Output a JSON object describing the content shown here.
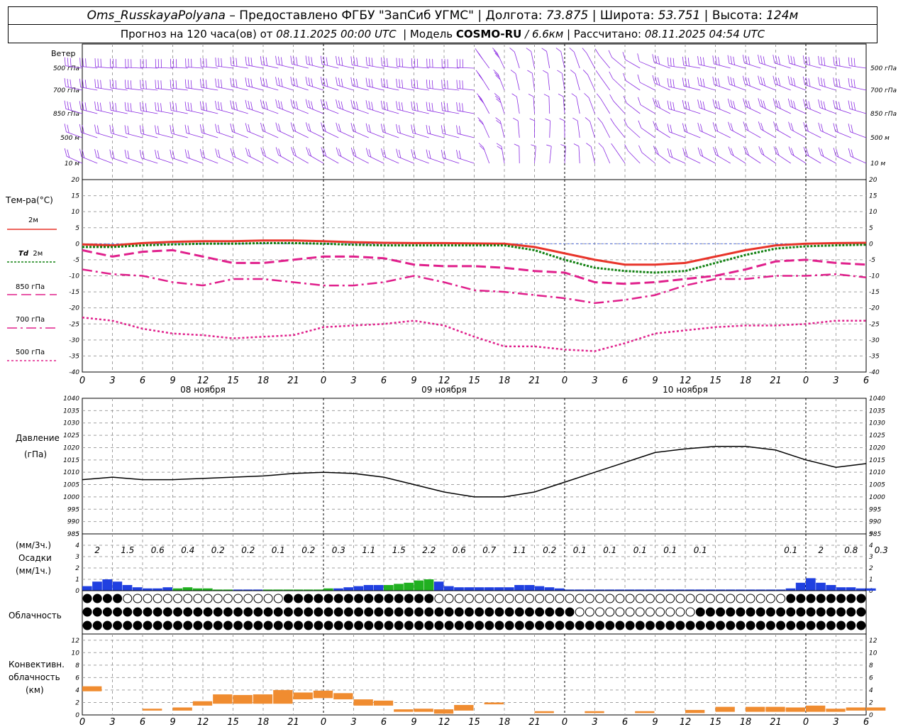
{
  "header": {
    "station": "Oms_RusskayaPolyana",
    "provided_by": "– Предоставлено ФГБУ \"ЗапСиб УГМС\"",
    "lon_label": "Долгота:",
    "lon_value": "73.875",
    "lat_label": "Широта:",
    "lat_value": "53.751",
    "alt_label": "Высота:",
    "alt_value": "124м",
    "forecast_label": "Прогноз на 120 часа(ов) от",
    "forecast_start": "08.11.2025 00:00 UTC",
    "model_label": "Модель",
    "model_name": "COSMO-RU",
    "model_res": "/ 6.6км",
    "calc_label": "Рассчитано:",
    "calc_time": "08.11.2025 04:54 UTC"
  },
  "labels": {
    "wind": "Ветер",
    "wind_levels": [
      "500 гПа",
      "700 гПа",
      "850 гПа",
      "500 м",
      "10  м"
    ],
    "temp": "Тем-ра(°С)",
    "t2m": "2м",
    "td": "Td",
    "td2": "2м",
    "t850": "850 гПа",
    "t700": "700 гПа",
    "t500": "500 гПа",
    "pressure": "Давление",
    "pressure_unit": "(гПа)",
    "precip_unit3": "(мм/3ч.)",
    "precip": "Осадки",
    "precip_unit1": "(мм/1ч.)",
    "clouds": "Облачность",
    "conv1": "Конвективн.",
    "conv2": "облачность",
    "conv3": "(км)"
  },
  "colors": {
    "t2m": "#e8342a",
    "td": "#108010",
    "t850": "#e0208c",
    "t700": "#e0208c",
    "t500": "#e0208c",
    "pressure": "#000000",
    "precip_rain": "#2040e0",
    "precip_snow": "#20b020",
    "conv": "#f08c30",
    "wind": "#8a2be2",
    "grid": "#a0a0a0"
  },
  "chart_data": [
    {
      "type": "line",
      "name": "temperature",
      "x_ticks": [
        "0",
        "3",
        "6",
        "9",
        "12",
        "15",
        "18",
        "21",
        "0",
        "3",
        "6",
        "9",
        "12",
        "15",
        "18",
        "21",
        "0",
        "3",
        "6",
        "9",
        "12",
        "15",
        "18",
        "21",
        "0",
        "3",
        "6"
      ],
      "day_labels": [
        "08 ноября",
        "09 ноября",
        "10 ноября"
      ],
      "ylim": [
        -40,
        20
      ],
      "y_ticks": [
        "20",
        "15",
        "10",
        "5",
        "0",
        "-5",
        "-10",
        "-15",
        "-20",
        "-25",
        "-30",
        "-35",
        "-40"
      ],
      "x_hours": [
        0,
        3,
        6,
        9,
        12,
        15,
        18,
        21,
        24,
        27,
        30,
        33,
        36,
        39,
        42,
        45,
        48,
        51,
        54,
        57,
        60,
        63,
        66,
        69,
        72,
        75,
        78
      ],
      "series": [
        {
          "name": "2м",
          "values": [
            -0.2,
            -0.5,
            0.2,
            0.6,
            0.8,
            0.8,
            1,
            1,
            0.8,
            0.5,
            0.3,
            0.2,
            0.2,
            0.1,
            0,
            -1,
            -3,
            -5,
            -6.5,
            -6.5,
            -6,
            -4,
            -2,
            -0.5,
            0,
            0.2,
            0.3
          ]
        },
        {
          "name": "Td 2м",
          "values": [
            -1,
            -1,
            -0.5,
            -0.2,
            0,
            0,
            0.2,
            0.2,
            0,
            -0.3,
            -0.5,
            -0.5,
            -0.5,
            -0.5,
            -0.5,
            -2,
            -5,
            -7.5,
            -8.5,
            -9,
            -8.5,
            -6,
            -3.5,
            -1.5,
            -0.8,
            -0.5,
            -0.3
          ]
        },
        {
          "name": "850 гПа",
          "values": [
            -2,
            -4,
            -2.5,
            -2,
            -4,
            -6,
            -6,
            -5,
            -4,
            -4,
            -4.5,
            -6.5,
            -7,
            -7,
            -7.5,
            -8.5,
            -9,
            -12,
            -12.5,
            -12,
            -11,
            -10,
            -8,
            -5.5,
            -5,
            -6,
            -6.5
          ]
        },
        {
          "name": "700 гПа",
          "values": [
            -8,
            -9.5,
            -10,
            -12,
            -13,
            -11,
            -11,
            -12,
            -13,
            -13,
            -12,
            -10,
            -12,
            -14.5,
            -15,
            -16,
            -17,
            -18.5,
            -17.5,
            -16,
            -13,
            -11,
            -11,
            -10,
            -10,
            -9.5,
            -10.5
          ]
        },
        {
          "name": "500 гПа",
          "values": [
            -23,
            -24,
            -26.5,
            -28,
            -28.5,
            -29.5,
            -29,
            -28.5,
            -26,
            -25.5,
            -25,
            -24,
            -25.5,
            -29,
            -32,
            -32,
            -33,
            -33.5,
            -31,
            -28,
            -27,
            -26,
            -25.5,
            -25.5,
            -25,
            -24,
            -24
          ]
        }
      ]
    },
    {
      "type": "line",
      "name": "pressure",
      "ylim": [
        985,
        1040
      ],
      "y_ticks": [
        "1040",
        "1035",
        "1030",
        "1025",
        "1020",
        "1015",
        "1010",
        "1005",
        "1000",
        "995",
        "990",
        "985"
      ],
      "x_hours": [
        0,
        3,
        6,
        9,
        12,
        15,
        18,
        21,
        24,
        27,
        30,
        33,
        36,
        39,
        42,
        45,
        48,
        51,
        54,
        57,
        60,
        63,
        66,
        69,
        72,
        75,
        78
      ],
      "values": [
        1007,
        1008,
        1007,
        1007,
        1007.5,
        1008,
        1008.5,
        1009.5,
        1010,
        1009.5,
        1008,
        1005,
        1002,
        1000,
        1000,
        1002,
        1006,
        1010,
        1014,
        1018,
        1019.5,
        1020.5,
        1020.5,
        1019,
        1015,
        1012,
        1013.5
      ]
    },
    {
      "type": "bar",
      "name": "precipitation",
      "ylim": [
        0,
        5
      ],
      "y_ticks": [
        "5",
        "4",
        "3",
        "2",
        "1",
        "0"
      ],
      "totals_3h": [
        "2",
        "1.5",
        "0.6",
        "0.4",
        "0.2",
        "0.2",
        "0.1",
        "0.2",
        "0.3",
        "1.1",
        "1.5",
        "2.2",
        "0.6",
        "0.7",
        "1.1",
        "0.2",
        "0.1",
        "0.1",
        "0.1",
        "0.1",
        "0.1",
        "",
        "",
        "0.1",
        "2",
        "0.8",
        "0.3"
      ],
      "hourly_mm": [
        0.4,
        0.8,
        1.0,
        0.8,
        0.5,
        0.3,
        0.2,
        0.2,
        0.3,
        0.2,
        0.3,
        0.2,
        0.2,
        0.1,
        0.1,
        0.1,
        0.1,
        0.1,
        0.1,
        0.1,
        0.1,
        0.1,
        0.1,
        0.1,
        0.2,
        0.2,
        0.3,
        0.4,
        0.5,
        0.5,
        0.5,
        0.6,
        0.7,
        0.9,
        1.0,
        0.8,
        0.4,
        0.3,
        0.3,
        0.3,
        0.3,
        0.3,
        0.3,
        0.5,
        0.5,
        0.4,
        0.3,
        0.2,
        0.1,
        0.1,
        0.1,
        0.1,
        0.1,
        0.1,
        0.1,
        0.1,
        0.1,
        0.1,
        0.1,
        0.1,
        0.1,
        0.1,
        0.1,
        0.1,
        0.1,
        0.1,
        0.1,
        0.1,
        0.1,
        0.1,
        0.2,
        0.7,
        1.1,
        0.7,
        0.5,
        0.3,
        0.3,
        0.2,
        0.2
      ]
    },
    {
      "type": "bar",
      "name": "convective_cloud",
      "ylim": [
        0,
        13
      ],
      "y_ticks": [
        "12",
        "10",
        "8",
        "6",
        "4",
        "2",
        "0"
      ],
      "bottom_km": [
        3.8,
        0.7,
        0.7,
        1.5,
        1.8,
        1.8,
        1.8,
        1.8,
        2.5,
        2.7,
        2.5,
        1.5,
        1.5,
        0.5,
        0.5,
        0.2,
        0.7,
        1.7,
        0.3,
        0.3,
        0.3,
        0.3,
        0.5,
        0.5,
        0.5,
        0.5,
        0.7,
        0.7,
        0.7,
        0.5,
        0.5,
        0.7,
        0.7
      ],
      "top_km": [
        4.6,
        1.0,
        1.2,
        2.2,
        3.3,
        3.2,
        3.3,
        4.0,
        3.6,
        3.9,
        3.5,
        2.5,
        2.3,
        0.9,
        1.0,
        0.9,
        1.6,
        2.0,
        0.6,
        0.6,
        0.6,
        0.8,
        1.3,
        1.3,
        1.3,
        1.2,
        1.5,
        1.0,
        1.0,
        1.0,
        1.0,
        1.2,
        1.2
      ],
      "hours": [
        0,
        6,
        9,
        11,
        13,
        15,
        17,
        19,
        21,
        23,
        25,
        27,
        29,
        31,
        33,
        35,
        37,
        40,
        45,
        50,
        55,
        60,
        63,
        66,
        68,
        70,
        72,
        68,
        70,
        72,
        74,
        76,
        78
      ]
    }
  ]
}
